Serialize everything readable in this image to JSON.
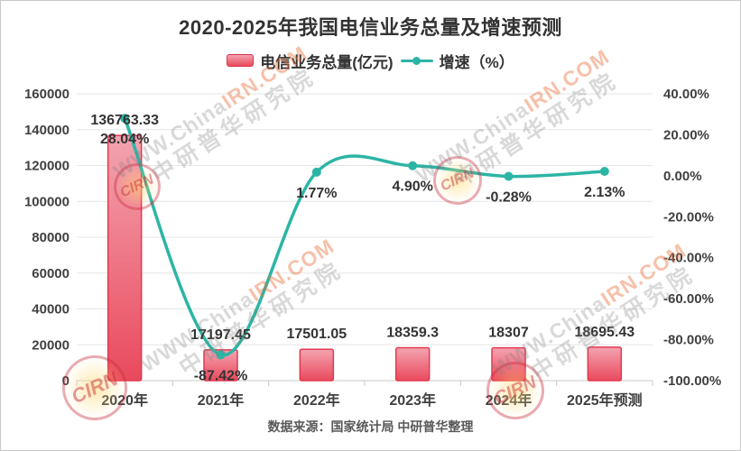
{
  "title": "2020-2025年我国电信业务总量及增速预测",
  "legend": {
    "bar_label": "电信业务总量(亿元)",
    "line_label": "增速（%）"
  },
  "source": "数据来源：国家统计局 中研普华整理",
  "watermark": {
    "line1_part1": "WWW.China",
    "line1_part2": "IRN.COM",
    "line2": "中研普华研究院",
    "stamp": "CIRN"
  },
  "chart_data": {
    "type": "bar+line",
    "categories": [
      "2020年",
      "2021年",
      "2022年",
      "2023年",
      "2024年",
      "2025年预测"
    ],
    "series": [
      {
        "name": "电信业务总量(亿元)",
        "type": "bar",
        "axis": "left",
        "values": [
          136763.33,
          17197.45,
          17501.05,
          18359.3,
          18307,
          18695.43
        ],
        "labels": [
          "136763.33",
          "17197.45",
          "17501.05",
          "18359.3",
          "18307",
          "18695.43"
        ]
      },
      {
        "name": "增速（%）",
        "type": "line",
        "axis": "right",
        "values": [
          28.04,
          -87.42,
          1.77,
          4.9,
          -0.28,
          2.13
        ],
        "labels": [
          "28.04%",
          "-87.42%",
          "1.77%",
          "4.90%",
          "-0.28%",
          "2.13%"
        ]
      }
    ],
    "left_axis": {
      "min": 0,
      "max": 160000,
      "tick_step": 20000,
      "tick_labels": [
        "0",
        "20000",
        "40000",
        "60000",
        "80000",
        "100000",
        "120000",
        "140000",
        "160000"
      ]
    },
    "right_axis": {
      "min": -100,
      "max": 40,
      "tick_step": 20,
      "tick_labels": [
        "40.00%",
        "20.00%",
        "0.00%",
        "-20.00%",
        "-40.00%",
        "-60.00%",
        "-80.00%",
        "-100.00%"
      ]
    },
    "grid": true,
    "legend_position": "top",
    "colors": {
      "bar_fill_top": "#f3a4b0",
      "bar_fill_bottom": "#e9495d",
      "bar_stroke": "#e23a50",
      "line": "#2cb5a5",
      "grid": "#e6e6e6",
      "axis": "#c9c9c9",
      "data_label": "#333333",
      "axis_label": "#404040"
    }
  }
}
